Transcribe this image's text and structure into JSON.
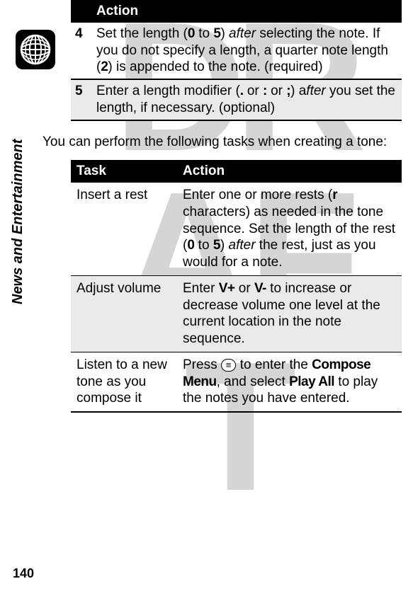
{
  "watermark_lines": [
    "DR",
    "AF",
    "T"
  ],
  "watermark_text": "DRAFT",
  "sidebar_label": "News and Entertainment",
  "page_number": "140",
  "steps_header": "Action",
  "steps": [
    {
      "num": "4",
      "text_parts": {
        "prefix": "Set the length (",
        "code1": "0",
        "mid1": " to ",
        "code2": "5",
        "mid2": ") ",
        "ital1": "after",
        "mid3": " selecting the note. If you do not specify a length, a quarter note length (",
        "code3": "2",
        "suffix": ") is appended to the note. (required)"
      }
    },
    {
      "num": "5",
      "text_parts": {
        "prefix": "Enter a length modifier (",
        "code1": ".",
        "mid1": " or ",
        "code2": ":",
        "mid2": " or ",
        "code3": ";",
        "mid3": ") a",
        "ital1": "fter",
        "suffix": " you set the length, if necessary. (optional)"
      }
    }
  ],
  "intro_text": "You can perform the following tasks when creating a tone:",
  "tasks_headers": {
    "task": "Task",
    "action": "Action"
  },
  "tasks": [
    {
      "task": "Insert a rest",
      "action": {
        "p1": "Enter one or more rests (",
        "c1": "r",
        "p2": " characters) as needed in the tone sequence. Set the length of the rest (",
        "c2": "0",
        "p3": " to ",
        "c3": "5",
        "p4": ") ",
        "i1": "after",
        "p5": " the rest, just as you would for a note."
      },
      "shaded": false
    },
    {
      "task": "Adjust volume",
      "action": {
        "p1": "Enter ",
        "c1": "V+",
        "p2": " or ",
        "c2": "V-",
        "p3": " to increase or decrease volume one level at the current location in the note sequence."
      },
      "shaded": true
    },
    {
      "task": "Listen to a new tone as you compose it",
      "action": {
        "p1": "Press ",
        "key1": "≡",
        "p2": " to enter the ",
        "c1": "Compose Menu",
        "p3": ", and select ",
        "c2": "Play All",
        "p4": " to play the notes you have entered."
      },
      "shaded": false
    }
  ]
}
